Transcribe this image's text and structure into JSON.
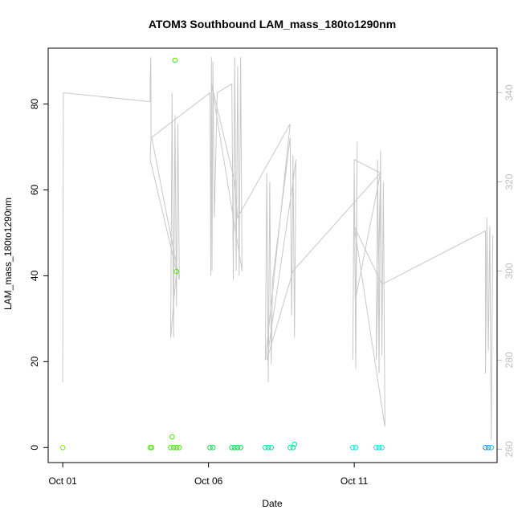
{
  "chart_data": {
    "type": "scatter",
    "title": "ATOM3 Southbound LAM_mass_180to1290nm",
    "xlabel": "Date",
    "ylabel": "LAM_mass_180to1290nm",
    "x_tick_labels": [
      "Oct 01",
      "Oct 06",
      "Oct 11"
    ],
    "x_ticks": [
      1,
      6,
      11
    ],
    "xlim": [
      0.5,
      15.9
    ],
    "ylim": [
      -3.5,
      93
    ],
    "y_ticks": [
      0,
      20,
      40,
      60,
      80
    ],
    "y2lim": [
      257,
      350
    ],
    "y2_ticks": [
      260,
      280,
      300,
      320,
      340
    ],
    "grid": false,
    "legend": "none",
    "colors": {
      "altitude_trace": "#c8c8c8",
      "right_axis": "#bdbdbd",
      "palette": [
        "#7cf000",
        "#44ee00",
        "#00e84a",
        "#00e6a0",
        "#00e8e0",
        "#00ccff",
        "#1e90ff"
      ]
    },
    "series": [
      {
        "role": "points",
        "axis": "left",
        "values": [
          {
            "x": 1.0,
            "y": 0.0,
            "c": 0
          },
          {
            "x": 4.0,
            "y": 0.0,
            "c": 1
          },
          {
            "x": 4.05,
            "y": 0.0,
            "c": 1
          },
          {
            "x": 4.75,
            "y": 2.5,
            "c": 1
          },
          {
            "x": 4.85,
            "y": 90.2,
            "c": 1
          },
          {
            "x": 4.9,
            "y": 41.0,
            "c": 1
          },
          {
            "x": 4.7,
            "y": 0.0,
            "c": 1
          },
          {
            "x": 4.8,
            "y": 0.0,
            "c": 1
          },
          {
            "x": 4.9,
            "y": 0.0,
            "c": 1
          },
          {
            "x": 5.0,
            "y": 0.0,
            "c": 1
          },
          {
            "x": 6.05,
            "y": 0.0,
            "c": 2
          },
          {
            "x": 6.15,
            "y": 0.0,
            "c": 2
          },
          {
            "x": 6.8,
            "y": 0.0,
            "c": 2
          },
          {
            "x": 6.9,
            "y": 0.0,
            "c": 2
          },
          {
            "x": 7.0,
            "y": 0.0,
            "c": 2
          },
          {
            "x": 7.1,
            "y": 0.0,
            "c": 2
          },
          {
            "x": 7.95,
            "y": 0.0,
            "c": 3
          },
          {
            "x": 8.05,
            "y": 0.0,
            "c": 3
          },
          {
            "x": 8.15,
            "y": 0.0,
            "c": 3
          },
          {
            "x": 8.8,
            "y": 0.0,
            "c": 3
          },
          {
            "x": 8.9,
            "y": 0.0,
            "c": 3
          },
          {
            "x": 8.95,
            "y": 0.8,
            "c": 3
          },
          {
            "x": 10.95,
            "y": 0.0,
            "c": 4
          },
          {
            "x": 11.05,
            "y": 0.0,
            "c": 4
          },
          {
            "x": 11.75,
            "y": 0.0,
            "c": 4
          },
          {
            "x": 11.85,
            "y": 0.0,
            "c": 4
          },
          {
            "x": 11.95,
            "y": 0.0,
            "c": 4
          },
          {
            "x": 15.5,
            "y": 0.0,
            "c": 6
          },
          {
            "x": 15.6,
            "y": 0.0,
            "c": 6
          },
          {
            "x": 15.7,
            "y": 0.0,
            "c": 5
          }
        ]
      },
      {
        "role": "trace",
        "axis": "right",
        "values": [
          {
            "x": 1.0,
            "y": 275
          },
          {
            "x": 1.02,
            "y": 340
          },
          {
            "x": 4.0,
            "y": 338
          },
          {
            "x": 4.0,
            "y": 342
          },
          {
            "x": 4.02,
            "y": 348
          },
          {
            "x": 4.03,
            "y": 330
          },
          {
            "x": 4.0,
            "y": 325
          },
          {
            "x": 4.9,
            "y": 300
          },
          {
            "x": 4.7,
            "y": 285
          },
          {
            "x": 4.75,
            "y": 340
          },
          {
            "x": 4.8,
            "y": 285
          },
          {
            "x": 4.85,
            "y": 335
          },
          {
            "x": 4.9,
            "y": 292
          },
          {
            "x": 4.95,
            "y": 333
          },
          {
            "x": 5.0,
            "y": 298
          },
          {
            "x": 4.05,
            "y": 330
          },
          {
            "x": 6.05,
            "y": 340
          },
          {
            "x": 6.08,
            "y": 299
          },
          {
            "x": 6.1,
            "y": 348
          },
          {
            "x": 6.12,
            "y": 300
          },
          {
            "x": 6.15,
            "y": 347
          },
          {
            "x": 6.2,
            "y": 312
          },
          {
            "x": 6.3,
            "y": 340
          },
          {
            "x": 6.8,
            "y": 342
          },
          {
            "x": 6.85,
            "y": 298
          },
          {
            "x": 6.9,
            "y": 348
          },
          {
            "x": 6.95,
            "y": 300
          },
          {
            "x": 7.0,
            "y": 346
          },
          {
            "x": 7.05,
            "y": 299
          },
          {
            "x": 7.1,
            "y": 348
          },
          {
            "x": 7.15,
            "y": 300
          },
          {
            "x": 6.1,
            "y": 342
          },
          {
            "x": 6.9,
            "y": 320
          },
          {
            "x": 7.0,
            "y": 312
          },
          {
            "x": 8.8,
            "y": 333
          },
          {
            "x": 7.95,
            "y": 280
          },
          {
            "x": 8.0,
            "y": 322
          },
          {
            "x": 8.05,
            "y": 275
          },
          {
            "x": 8.1,
            "y": 320
          },
          {
            "x": 8.15,
            "y": 279
          },
          {
            "x": 8.2,
            "y": 298
          },
          {
            "x": 8.8,
            "y": 330
          },
          {
            "x": 8.85,
            "y": 290
          },
          {
            "x": 8.9,
            "y": 326
          },
          {
            "x": 8.95,
            "y": 285
          },
          {
            "x": 9.0,
            "y": 325
          },
          {
            "x": 8.9,
            "y": 320
          },
          {
            "x": 8.0,
            "y": 280
          },
          {
            "x": 8.9,
            "y": 300
          },
          {
            "x": 11.9,
            "y": 322
          },
          {
            "x": 11.0,
            "y": 325
          },
          {
            "x": 10.95,
            "y": 280
          },
          {
            "x": 11.0,
            "y": 322
          },
          {
            "x": 11.05,
            "y": 278
          },
          {
            "x": 11.1,
            "y": 329
          },
          {
            "x": 11.05,
            "y": 294
          },
          {
            "x": 11.9,
            "y": 322
          },
          {
            "x": 11.75,
            "y": 280
          },
          {
            "x": 11.8,
            "y": 325
          },
          {
            "x": 11.85,
            "y": 277
          },
          {
            "x": 11.9,
            "y": 327
          },
          {
            "x": 11.95,
            "y": 281
          },
          {
            "x": 12.0,
            "y": 320
          },
          {
            "x": 12.05,
            "y": 265
          },
          {
            "x": 11.0,
            "y": 310
          },
          {
            "x": 11.95,
            "y": 297
          },
          {
            "x": 15.5,
            "y": 309
          },
          {
            "x": 15.5,
            "y": 277
          },
          {
            "x": 15.55,
            "y": 312
          },
          {
            "x": 15.6,
            "y": 282
          },
          {
            "x": 15.65,
            "y": 310
          },
          {
            "x": 15.7,
            "y": 262
          },
          {
            "x": 15.75,
            "y": 308
          }
        ]
      }
    ]
  }
}
